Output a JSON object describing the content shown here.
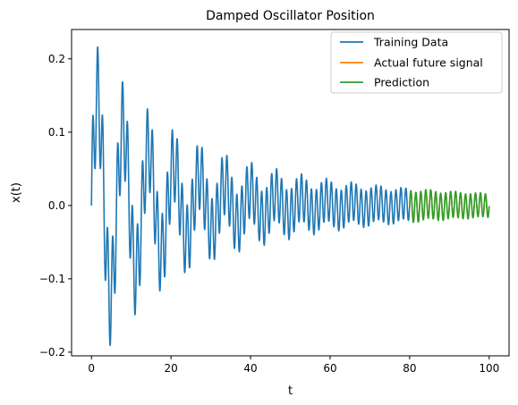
{
  "chart_data": {
    "type": "line",
    "title": "Damped Oscillator Position",
    "xlabel": "t",
    "ylabel": "x(t)",
    "xlim": [
      -5,
      105
    ],
    "ylim": [
      -0.205,
      0.24
    ],
    "xticks": [
      0,
      20,
      40,
      60,
      80,
      100
    ],
    "xtick_labels": [
      "0",
      "20",
      "40",
      "60",
      "80",
      "100"
    ],
    "yticks": [
      -0.2,
      -0.1,
      0.0,
      0.1,
      0.2
    ],
    "ytick_labels": [
      "−0.2",
      "−0.1",
      "0.0",
      "0.1",
      "0.2"
    ],
    "grid": false,
    "legend_position": "top-right",
    "series": [
      {
        "name": "Training Data",
        "color": "#1f77b4",
        "x_range": [
          0,
          80
        ],
        "components": [
          {
            "amplitude": 0.16,
            "decay": 0.05,
            "period": 6.4
          },
          {
            "amplitude": 0.07,
            "decay": 0.015,
            "period": 1.25
          }
        ]
      },
      {
        "name": "Actual future signal",
        "color": "#ff7f0e",
        "x_range": [
          80,
          100
        ],
        "components": [
          {
            "amplitude": 0.16,
            "decay": 0.05,
            "period": 6.4
          },
          {
            "amplitude": 0.07,
            "decay": 0.015,
            "period": 1.25
          }
        ]
      },
      {
        "name": "Prediction",
        "color": "#2ca02c",
        "x_range": [
          80,
          100
        ],
        "components": [
          {
            "amplitude": 0.16,
            "decay": 0.05,
            "period": 6.4
          },
          {
            "amplitude": 0.07,
            "decay": 0.015,
            "period": 1.25
          }
        ]
      }
    ]
  }
}
